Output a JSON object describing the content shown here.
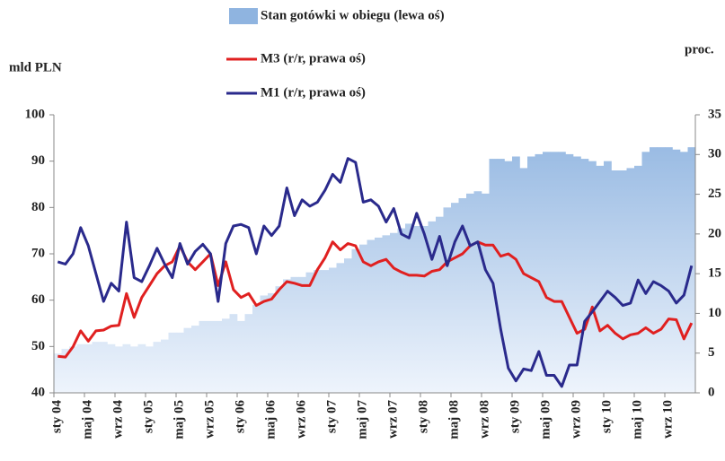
{
  "chart_data": {
    "type": "bar-line",
    "y_label": "mld PLN",
    "y2_label": "proc.",
    "categories": [
      "sty 04",
      null,
      null,
      null,
      "maj 04",
      null,
      null,
      null,
      "wrz 04",
      null,
      null,
      null,
      "sty 05",
      null,
      null,
      null,
      "maj 05",
      null,
      null,
      null,
      "wrz 05",
      null,
      null,
      null,
      "sty 06",
      null,
      null,
      null,
      "maj 06",
      null,
      null,
      null,
      "wrz 06",
      null,
      null,
      null,
      "sty 07",
      null,
      null,
      null,
      "maj 07",
      null,
      null,
      null,
      "wrz 07",
      null,
      null,
      null,
      "sty 08",
      null,
      null,
      null,
      "maj 08",
      null,
      null,
      null,
      "wrz 08",
      null,
      null,
      null,
      "sty 09",
      null,
      null,
      null,
      "maj 09",
      null,
      null,
      null,
      "wrz 09",
      null,
      null,
      null,
      "sty 10",
      null,
      null,
      null,
      "maj 10",
      null,
      null,
      null,
      "wrz 10",
      null,
      null,
      null
    ],
    "series": [
      {
        "name": "Stan gotówki w obiegu (lewa oś)",
        "kind": "bar",
        "axis": "y",
        "color": "#8fb4e0",
        "values": [
          48.5,
          49.5,
          50,
          50.5,
          50.5,
          51,
          51,
          50.5,
          50,
          50.5,
          50,
          50.5,
          50,
          51,
          51.5,
          53,
          53,
          54,
          54.5,
          55.5,
          55.5,
          55.5,
          56,
          57,
          55.5,
          57,
          59,
          61,
          61.5,
          63,
          64.5,
          65,
          65,
          66,
          66.5,
          66.5,
          67,
          68,
          69,
          71,
          72,
          73,
          73.5,
          74,
          74.5,
          75.5,
          76.5,
          76,
          76,
          77,
          78,
          80,
          81,
          82,
          83,
          83.5,
          83,
          90.5,
          90.5,
          90,
          91,
          88.5,
          91,
          91.5,
          92,
          92,
          92,
          91.5,
          91,
          90.5,
          90,
          89,
          90,
          88,
          88,
          88.5,
          89,
          92,
          93,
          93,
          93,
          92.5,
          92,
          93
        ]
      },
      {
        "name": "M3 (r/r, prawa oś)",
        "kind": "line",
        "axis": "y2",
        "color": "#e02020",
        "values": [
          4.6,
          4.5,
          5.8,
          7.8,
          6.5,
          7.8,
          7.9,
          8.4,
          8.5,
          12.5,
          9.5,
          12,
          13.5,
          15,
          16,
          16.5,
          18.5,
          16.5,
          15.5,
          16.5,
          17.5,
          13.5,
          16.5,
          13,
          12,
          12.5,
          11,
          11.5,
          11.8,
          13,
          14,
          13.8,
          13.5,
          13.5,
          15.5,
          17,
          19,
          18,
          18.8,
          18.5,
          16.5,
          16,
          16.5,
          16.8,
          15.7,
          15.2,
          14.8,
          14.8,
          14.7,
          15.3,
          15.5,
          16.5,
          17,
          17.5,
          18.5,
          19,
          18.6,
          18.6,
          17.2,
          17.5,
          16.8,
          15,
          14.5,
          14,
          12,
          11.5,
          11.5,
          9.5,
          7.5,
          8,
          10.8,
          7.8,
          8.5,
          7.5,
          6.8,
          7.3,
          7.5,
          8.2,
          7.5,
          8,
          9.3,
          9.2,
          6.8,
          8.8
        ]
      },
      {
        "name": "M1 (r/r, prawa oś)",
        "kind": "line",
        "axis": "y2",
        "color": "#2a2a8c",
        "values": [
          16.5,
          16.2,
          17.5,
          20.8,
          18.5,
          15,
          11.5,
          13.8,
          12.8,
          21.5,
          14.5,
          14,
          16,
          18.2,
          16.2,
          14.5,
          18.8,
          16.2,
          17.8,
          18.7,
          17.5,
          11.5,
          18.8,
          21,
          21.2,
          20.8,
          17.5,
          21,
          19.8,
          21,
          25.8,
          22.3,
          24.3,
          23.5,
          24,
          25.5,
          27.5,
          26.5,
          29.5,
          29,
          24,
          24.3,
          23.5,
          21.5,
          23.2,
          20,
          19.5,
          22.6,
          20,
          16.8,
          19.7,
          16,
          19,
          21,
          18.5,
          19,
          15.5,
          13.8,
          8,
          3.1,
          1.5,
          3,
          2.8,
          5.2,
          2.2,
          2.2,
          0.8,
          3.5,
          3.5,
          9,
          10.2,
          11.5,
          12.8,
          12,
          11,
          11.3,
          14.2,
          12.5,
          14,
          13.5,
          12.8,
          11.3,
          12.3,
          16
        ]
      }
    ],
    "ylim": [
      40,
      100
    ],
    "yticks": [
      40,
      50,
      60,
      70,
      80,
      90,
      100
    ],
    "y2lim": [
      0,
      35
    ],
    "y2ticks": [
      0,
      5,
      10,
      15,
      20,
      25,
      30,
      35
    ],
    "grid": false,
    "legend": "top"
  }
}
